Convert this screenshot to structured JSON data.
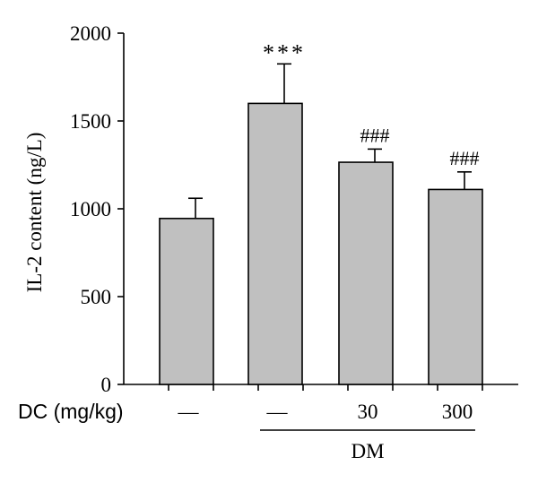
{
  "chart_data": {
    "type": "bar",
    "ylabel": "IL-2 content (ng/L)",
    "ylim": [
      0,
      2000
    ],
    "yticks": [
      0,
      500,
      1000,
      1500,
      2000
    ],
    "categories": [
      "—",
      "—",
      "30",
      "300"
    ],
    "values": [
      945,
      1600,
      1265,
      1110
    ],
    "errors": [
      115,
      225,
      75,
      100
    ],
    "annotations": [
      "",
      "***",
      "###",
      "###"
    ],
    "category_row_label": "DC (mg/kg)",
    "group_label": "DM",
    "grid": false,
    "bar_color": "#c0c0c0",
    "edge_color": "#000000"
  }
}
